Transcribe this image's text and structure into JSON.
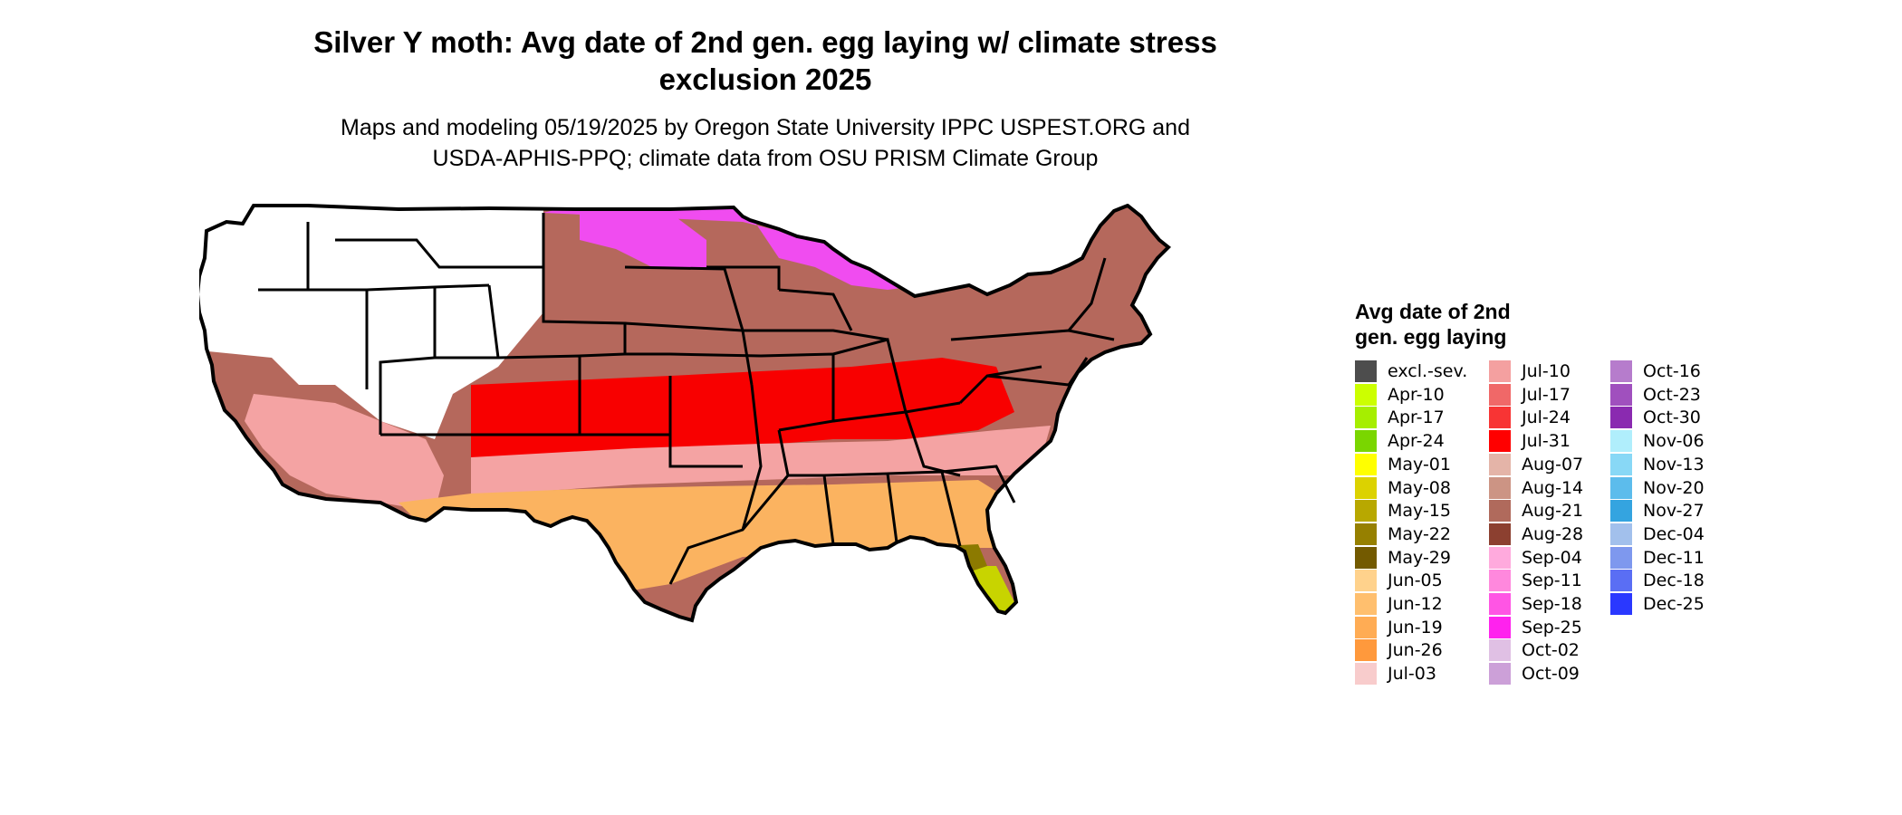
{
  "title": {
    "line1": "Silver Y moth: Avg date of 2nd gen. egg laying w/ climate stress",
    "line2": "exclusion 2025"
  },
  "subtitle": {
    "line1": "Maps and modeling 05/19/2025 by Oregon State University IPPC USPEST.ORG and",
    "line2": "USDA-APHIS-PPQ; climate data from OSU PRISM Climate Group"
  },
  "map": {
    "region": "Contiguous United States",
    "colors": {
      "outline": "#000000",
      "excluded": "#ffffff",
      "deep_south": "#c8d400",
      "gulf": "#8c7a00",
      "south": "#fbb360",
      "mid_south": "#f4a3a3",
      "central": "#f80000",
      "north_central": "#b5685c",
      "north": "#f04cf0"
    }
  },
  "legend": {
    "title_line1": "Avg date of 2nd",
    "title_line2": "gen. egg laying",
    "items": [
      {
        "label": "excl.-sev.",
        "color": "#4d4d4d"
      },
      {
        "label": "Apr-10",
        "color": "#ccff00"
      },
      {
        "label": "Apr-17",
        "color": "#a6ee00"
      },
      {
        "label": "Apr-24",
        "color": "#7ad600"
      },
      {
        "label": "May-01",
        "color": "#ffff00"
      },
      {
        "label": "May-08",
        "color": "#dcd200"
      },
      {
        "label": "May-15",
        "color": "#b8a800"
      },
      {
        "label": "May-22",
        "color": "#968000"
      },
      {
        "label": "May-29",
        "color": "#735a00"
      },
      {
        "label": "Jun-05",
        "color": "#ffd28c"
      },
      {
        "label": "Jun-12",
        "color": "#ffbf6e"
      },
      {
        "label": "Jun-19",
        "color": "#ffac54"
      },
      {
        "label": "Jun-26",
        "color": "#ff993c"
      },
      {
        "label": "Jul-03",
        "color": "#f8cccc"
      },
      {
        "label": "Jul-10",
        "color": "#f4a0a0"
      },
      {
        "label": "Jul-17",
        "color": "#f06868"
      },
      {
        "label": "Jul-24",
        "color": "#f83434"
      },
      {
        "label": "Jul-31",
        "color": "#ff0000"
      },
      {
        "label": "Aug-07",
        "color": "#e4b4a8"
      },
      {
        "label": "Aug-14",
        "color": "#cc9484"
      },
      {
        "label": "Aug-21",
        "color": "#b06a5c"
      },
      {
        "label": "Aug-28",
        "color": "#8c4030"
      },
      {
        "label": "Sep-04",
        "color": "#ffaadd"
      },
      {
        "label": "Sep-11",
        "color": "#ff88dd"
      },
      {
        "label": "Sep-18",
        "color": "#ff55e4"
      },
      {
        "label": "Sep-25",
        "color": "#ff22ee"
      },
      {
        "label": "Oct-02",
        "color": "#e0c0e4"
      },
      {
        "label": "Oct-09",
        "color": "#cca0d8"
      },
      {
        "label": "Oct-16",
        "color": "#b67ccc"
      },
      {
        "label": "Oct-23",
        "color": "#a050be"
      },
      {
        "label": "Oct-30",
        "color": "#8a2ab0"
      },
      {
        "label": "Nov-06",
        "color": "#b0eefc"
      },
      {
        "label": "Nov-13",
        "color": "#88d8f6"
      },
      {
        "label": "Nov-20",
        "color": "#5cbcec"
      },
      {
        "label": "Nov-27",
        "color": "#34a4e0"
      },
      {
        "label": "Dec-04",
        "color": "#a2c0ec"
      },
      {
        "label": "Dec-11",
        "color": "#7e98ee"
      },
      {
        "label": "Dec-18",
        "color": "#5a6ef4"
      },
      {
        "label": "Dec-25",
        "color": "#2a38ff"
      }
    ]
  }
}
